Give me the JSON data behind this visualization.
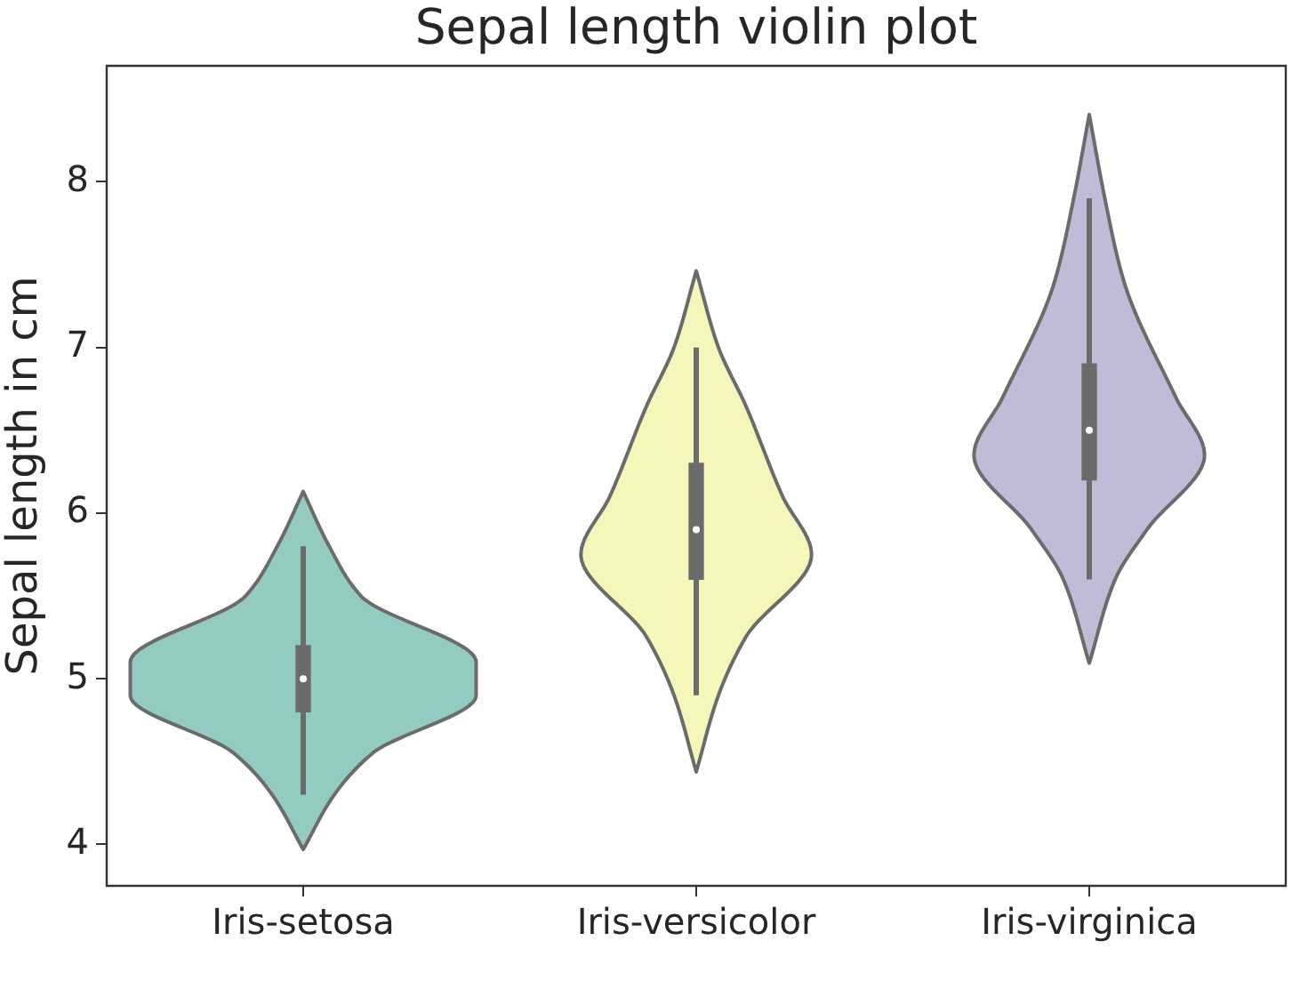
{
  "chart_data": {
    "type": "box",
    "title": "Sepal length violin plot",
    "ylabel": "Sepal length in cm",
    "categories": [
      "Iris-setosa",
      "Iris-versicolor",
      "Iris-virginica"
    ],
    "boxes": [
      {
        "low": 4.3,
        "q1": 4.8,
        "median": 5.0,
        "q3": 5.2,
        "high": 5.8
      },
      {
        "low": 4.9,
        "q1": 5.6,
        "median": 5.9,
        "q3": 6.3,
        "high": 7.0
      },
      {
        "low": 5.6,
        "q1": 6.2,
        "median": 6.5,
        "q3": 6.9,
        "high": 7.9
      }
    ],
    "color": "#6b6b6b",
    "ylim": [
      3.75,
      8.7
    ],
    "yticks": [
      4,
      5,
      6,
      7,
      8
    ]
  }
}
